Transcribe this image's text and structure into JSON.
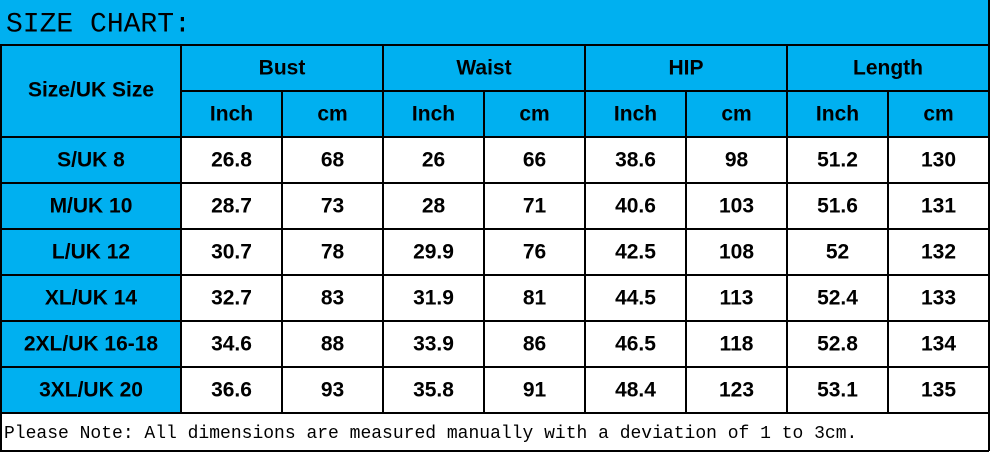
{
  "title": "SIZE CHART:",
  "table": {
    "header": {
      "size": "Size/UK Size",
      "groups": [
        "Bust",
        "Waist",
        "HIP",
        "Length"
      ],
      "units": [
        "Inch",
        "cm",
        "Inch",
        "cm",
        "Inch",
        "cm",
        "Inch",
        "cm"
      ]
    },
    "rows": [
      [
        "S/UK 8",
        26.8,
        68,
        26,
        66,
        38.6,
        98,
        51.2,
        130
      ],
      [
        "M/UK 10",
        28.7,
        73,
        28,
        71,
        40.6,
        103,
        51.6,
        131
      ],
      [
        "L/UK 12",
        30.7,
        78,
        29.9,
        76,
        42.5,
        108,
        52,
        132
      ],
      [
        "XL/UK 14",
        32.7,
        83,
        31.9,
        81,
        44.5,
        113,
        52.4,
        133
      ],
      [
        "2XL/UK 16-18",
        34.6,
        88,
        33.9,
        86,
        46.5,
        118,
        52.8,
        134
      ],
      [
        "3XL/UK 20",
        36.6,
        93,
        35.8,
        91,
        48.4,
        123,
        53.1,
        135
      ]
    ]
  },
  "note": "Please Note: All dimensions are measured manually with a deviation of 1 to 3cm."
}
